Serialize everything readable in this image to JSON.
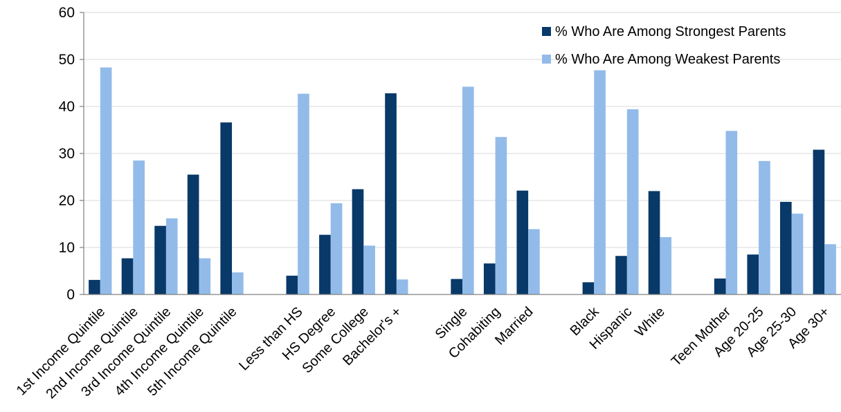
{
  "chart_data": {
    "type": "bar",
    "title": "",
    "xlabel": "",
    "ylabel": "",
    "ylim": [
      0,
      60
    ],
    "yticks": [
      0,
      10,
      20,
      30,
      40,
      50,
      60
    ],
    "grid": true,
    "legend_position": "top-right",
    "categories": [
      "1st Income Quintile",
      "2nd Income Quintile",
      "3rd Income Quintile",
      "4th Income Quintile",
      "5th Income Quintile",
      "",
      "Less than HS",
      "HS Degree",
      "Some College",
      "Bachelor's +",
      "",
      "Single",
      "Cohabiting",
      "Married",
      "",
      "Black",
      "Hispanic",
      "White",
      "",
      "Teen Mother",
      "Age 20-25",
      "Age 25-30",
      "Age 30+"
    ],
    "series": [
      {
        "name": "% Who Are Among Strongest Parents",
        "color": "#083968",
        "values": [
          3.1,
          7.7,
          14.6,
          25.5,
          36.6,
          null,
          4.0,
          12.7,
          22.4,
          42.8,
          null,
          3.3,
          6.6,
          22.1,
          null,
          2.6,
          8.2,
          22.0,
          null,
          3.4,
          8.5,
          19.7,
          30.8
        ]
      },
      {
        "name": "% Who Are Among Weakest Parents",
        "color": "#92BBE9",
        "values": [
          48.3,
          28.5,
          16.2,
          7.7,
          4.7,
          null,
          42.7,
          19.4,
          10.4,
          3.2,
          null,
          44.2,
          33.5,
          13.9,
          null,
          47.7,
          39.4,
          12.2,
          null,
          34.8,
          28.4,
          17.2,
          10.7
        ]
      }
    ]
  }
}
